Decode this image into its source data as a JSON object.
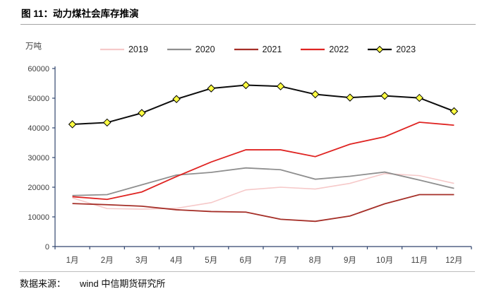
{
  "figure": {
    "title": "图 11：动力煤社会库存推演",
    "footer_label": "数据来源：",
    "footer_value": "wind 中信期货研究所"
  },
  "chart_data": {
    "type": "line",
    "title": "动力煤社会库存推演",
    "unit": "万吨",
    "categories": [
      "1月",
      "2月",
      "3月",
      "4月",
      "5月",
      "6月",
      "7月",
      "8月",
      "9月",
      "10月",
      "11月",
      "12月"
    ],
    "ylim": [
      0,
      60000
    ],
    "ytick_step": 10000,
    "grid": false,
    "legend_position": "top",
    "axis_color": "#31456e",
    "text_color": "#3f3f3f",
    "series": [
      {
        "name": "2019",
        "color": "#f6c9c9",
        "width": 1.6,
        "marker": "none",
        "values": [
          16400,
          12800,
          12600,
          12900,
          14800,
          19100,
          20000,
          19400,
          21300,
          24600,
          23900,
          21300
        ]
      },
      {
        "name": "2020",
        "color": "#8f8f8f",
        "width": 1.8,
        "marker": "none",
        "values": [
          17200,
          17500,
          20800,
          24100,
          25000,
          26500,
          25900,
          22700,
          23700,
          25100,
          22400,
          19600
        ]
      },
      {
        "name": "2021",
        "color": "#a52f28",
        "width": 1.8,
        "marker": "none",
        "values": [
          14500,
          14100,
          13600,
          12400,
          11800,
          11600,
          9200,
          8500,
          10300,
          14400,
          17500,
          17500
        ]
      },
      {
        "name": "2022",
        "color": "#df2422",
        "width": 1.8,
        "marker": "none",
        "values": [
          16800,
          15900,
          18400,
          23600,
          28500,
          32600,
          32600,
          30300,
          34500,
          37000,
          41900,
          40900
        ]
      },
      {
        "name": "2023",
        "color": "#0d0d0d",
        "width": 2.0,
        "marker": "diamond",
        "marker_fill": "#ffff42",
        "marker_stroke": "#000000",
        "values": [
          41200,
          41800,
          45000,
          49700,
          53300,
          54400,
          54000,
          51300,
          50200,
          50800,
          50100,
          45600
        ]
      }
    ]
  }
}
